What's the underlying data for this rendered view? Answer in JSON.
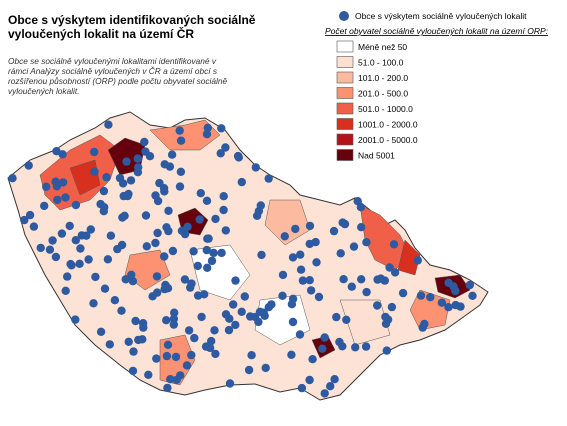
{
  "title": [
    "Obce s výskytem identifikovaných sociálně",
    "vyloučených lokalit na území ČR"
  ],
  "description": [
    "Obce se sociálně vyloučenými lokalitami identifikované v",
    "rámci Analýzy sociálně vyloučených v ČR a území obcí s",
    "rozšířenou působností (ORP) podle počtu obyvatel sociálně",
    "vyloučených lokalit."
  ],
  "legend": {
    "points": {
      "label": "Obce s výskytem sociálně vyloučených lokalit",
      "color": "#2d5aa0"
    },
    "title": "Počet obyvatel sociálně vyloučených lokalit na území ORP:",
    "classes": [
      {
        "label": "Méně než 50",
        "color": "#ffffff"
      },
      {
        "label": "51.0 - 100.0",
        "color": "#fee0d2"
      },
      {
        "label": "101.0 - 200.0",
        "color": "#fcbba1"
      },
      {
        "label": "201.0 - 500.0",
        "color": "#fc9272"
      },
      {
        "label": "501.0 - 1000.0",
        "color": "#f06048"
      },
      {
        "label": "1001.0 - 2000.0",
        "color": "#d7301f"
      },
      {
        "label": "2001.0 - 5000.0",
        "color": "#b3141a"
      },
      {
        "label": "Nad 5001",
        "color": "#67000d"
      }
    ]
  }
}
